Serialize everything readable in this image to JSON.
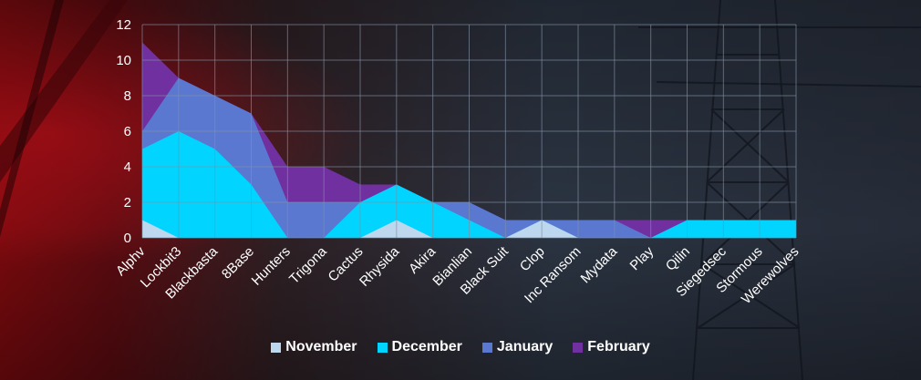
{
  "chart_data": {
    "type": "area",
    "stacked": false,
    "categories": [
      "Alphv",
      "Lockbit3",
      "Blackbasta",
      "8Base",
      "Hunters",
      "Trigona",
      "Cactus",
      "Rhysida",
      "Akira",
      "Bianlian",
      "Black Suit",
      "Clop",
      "Inc Ransom",
      "Mydata",
      "Play",
      "Qilin",
      "Siegedsec",
      "Stormous",
      "Werewolves"
    ],
    "series": [
      {
        "name": "February",
        "color": "#7030A0",
        "values": [
          11,
          9,
          8,
          7,
          4,
          4,
          3,
          3,
          2,
          2,
          1,
          1,
          1,
          1,
          1,
          1,
          1,
          1,
          1
        ]
      },
      {
        "name": "January",
        "color": "#5B78D0",
        "values": [
          6,
          9,
          8,
          7,
          2,
          2,
          2,
          3,
          2,
          2,
          1,
          1,
          1,
          1,
          0,
          1,
          1,
          1,
          1
        ]
      },
      {
        "name": "December",
        "color": "#00D4FF",
        "values": [
          5,
          6,
          5,
          3,
          0,
          0,
          2,
          3,
          2,
          1,
          0,
          1,
          0,
          0,
          0,
          1,
          1,
          1,
          1
        ]
      },
      {
        "name": "November",
        "color": "#BDD7EE",
        "values": [
          1,
          0,
          0,
          0,
          0,
          0,
          0,
          1,
          0,
          0,
          0,
          1,
          0,
          0,
          0,
          0,
          0,
          0,
          0
        ]
      }
    ],
    "legend_order": [
      "November",
      "December",
      "January",
      "February"
    ],
    "ylim": [
      0,
      12
    ],
    "yticks": [
      0,
      2,
      4,
      6,
      8,
      10,
      12
    ],
    "grid": true,
    "legend_position": "bottom"
  }
}
